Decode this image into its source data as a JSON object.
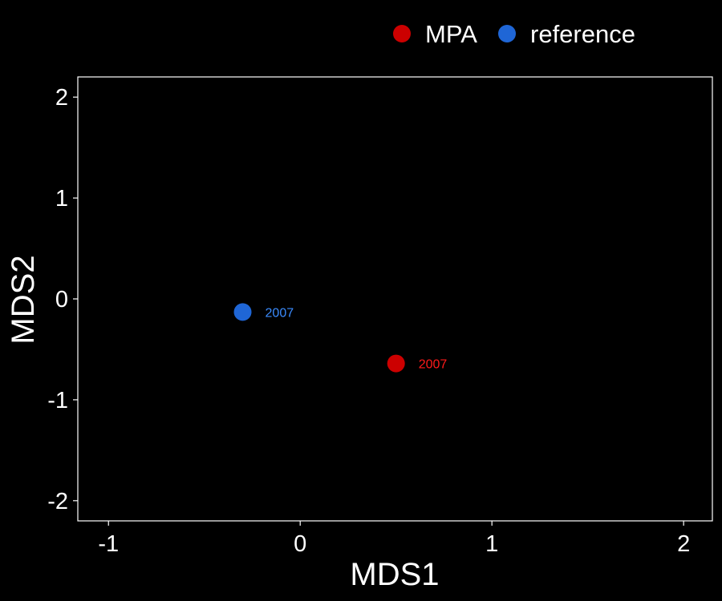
{
  "chart_data": {
    "type": "scatter",
    "xlabel": "MDS1",
    "ylabel": "MDS2",
    "xlim": [
      -1.16,
      2.15
    ],
    "ylim": [
      -2.2,
      2.2
    ],
    "x_ticks": [
      -1,
      0,
      1,
      2
    ],
    "y_ticks": [
      2,
      1,
      0,
      -1,
      -2
    ],
    "x_tick_labels": [
      "-1",
      "0",
      "1",
      "2"
    ],
    "y_tick_labels": [
      "2",
      "1",
      "0",
      "-1",
      "-2"
    ],
    "grid": false,
    "legend_position": "top",
    "series": [
      {
        "name": "MPA",
        "color": "#cc0000",
        "label_color": "#ff1a1a",
        "points": [
          {
            "x": 0.5,
            "y": -0.64,
            "label": "2007"
          }
        ]
      },
      {
        "name": "reference",
        "color": "#1f66d6",
        "label_color": "#3b8cff",
        "points": [
          {
            "x": -0.3,
            "y": -0.13,
            "label": "2007"
          }
        ]
      }
    ]
  }
}
